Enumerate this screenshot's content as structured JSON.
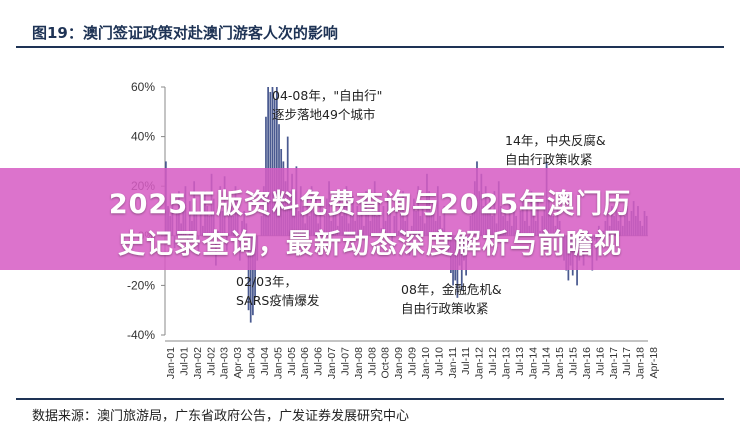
{
  "figure": {
    "title": "图19：澳门签证政策对赴澳门游客人次的影响",
    "source": "数据来源：澳门旅游局，广东省政府公告，广发证券发展研究中心"
  },
  "banner": {
    "line1": "2025正版资料免费查询与2025年澳门历",
    "line2": "史记录查询，最新动态深度解析与前瞻视"
  },
  "colors": {
    "bar": "#4a5a90",
    "title": "#1e3355",
    "banner": "#d65cc4"
  },
  "chart_data": {
    "type": "bar",
    "ylim": [
      -40,
      60
    ],
    "y_ticks": [
      "60%",
      "40%",
      "20%",
      "0%",
      "-20%",
      "-40%"
    ],
    "y_tick_values": [
      60,
      40,
      20,
      0,
      -20,
      -40
    ],
    "x_tick_labels": [
      "Jan-01",
      "Jul-01",
      "Jan-02",
      "Jul-02",
      "Jan-03",
      "Apr-03",
      "Jan-04",
      "Jul-04",
      "Jan-05",
      "Jul-05",
      "Jan-06",
      "Jul-06",
      "Jan-07",
      "Jul-07",
      "Jan-08",
      "Jul-08",
      "Oct-08",
      "Jan-09",
      "Jul-09",
      "Jan-10",
      "Jul-10",
      "Jan-11",
      "Jul-11",
      "Jan-12",
      "Jul-12",
      "Jan-13",
      "Jul-13",
      "Jan-14",
      "Jul-14",
      "Jan-15",
      "Jul-15",
      "Jan-16",
      "Jul-16",
      "Jan-17",
      "Jul-17",
      "Jan-18",
      "Apr-18"
    ],
    "x_start": "Jan-01",
    "x_end": "Apr-18",
    "values": [
      30,
      12,
      8,
      15,
      -5,
      10,
      18,
      5,
      12,
      20,
      -3,
      14,
      6,
      22,
      10,
      -8,
      16,
      4,
      18,
      12,
      8,
      25,
      15,
      -12,
      2,
      20,
      10,
      24,
      -6,
      15,
      12,
      8,
      20,
      14,
      -10,
      6,
      10,
      5,
      -30,
      -35,
      -32,
      -25,
      -10,
      0,
      8,
      20,
      48,
      60,
      58,
      60,
      55,
      60,
      45,
      35,
      30,
      22,
      40,
      18,
      25,
      15,
      28,
      10,
      20,
      12,
      5,
      15,
      8,
      20,
      10,
      15,
      5,
      12,
      -5,
      8,
      15,
      22,
      6,
      18,
      10,
      4,
      15,
      8,
      12,
      20,
      5,
      10,
      16,
      6,
      12,
      8,
      14,
      4,
      18,
      10,
      6,
      12,
      22,
      8,
      14,
      3,
      12,
      6,
      18,
      10,
      -5,
      8,
      14,
      2,
      10,
      18,
      6,
      12,
      -8,
      4,
      15,
      10,
      20,
      8,
      12,
      5,
      25,
      18,
      10,
      14,
      6,
      20,
      8,
      3,
      12,
      -4,
      -8,
      -15,
      -20,
      -18,
      -25,
      -12,
      -22,
      -10,
      -16,
      -5,
      8,
      15,
      22,
      30,
      18,
      25,
      12,
      20,
      10,
      15,
      8,
      18,
      5,
      22,
      12,
      8,
      10,
      6,
      14,
      4,
      12,
      8,
      2,
      10,
      16,
      6,
      12,
      4,
      18,
      10,
      6,
      14,
      2,
      8,
      12,
      30,
      15,
      10,
      8,
      4,
      12,
      6,
      -6,
      -10,
      -14,
      -18,
      -12,
      -16,
      -8,
      -20,
      -10,
      -6,
      -12,
      -4,
      2,
      -8,
      -14,
      -2,
      -10,
      4,
      -6,
      2,
      6,
      10,
      4,
      12,
      8,
      14,
      6,
      10,
      4,
      8,
      12,
      6,
      10,
      14,
      8,
      12,
      6,
      4,
      10,
      8
    ],
    "annotations": [
      {
        "x": "Jan-04",
        "text": "04-08年，\"自由行\"逐步落地49个城市"
      },
      {
        "x": "Apr-03",
        "text": "02/03年，SARS疫情爆发"
      },
      {
        "x": "Oct-08",
        "text": "08年，金融危机&自由行政策收紧"
      },
      {
        "x": "Jan-14",
        "text": "14年，中央反腐&自由行政策收紧"
      }
    ],
    "title": "",
    "xlabel": "",
    "ylabel": ""
  }
}
